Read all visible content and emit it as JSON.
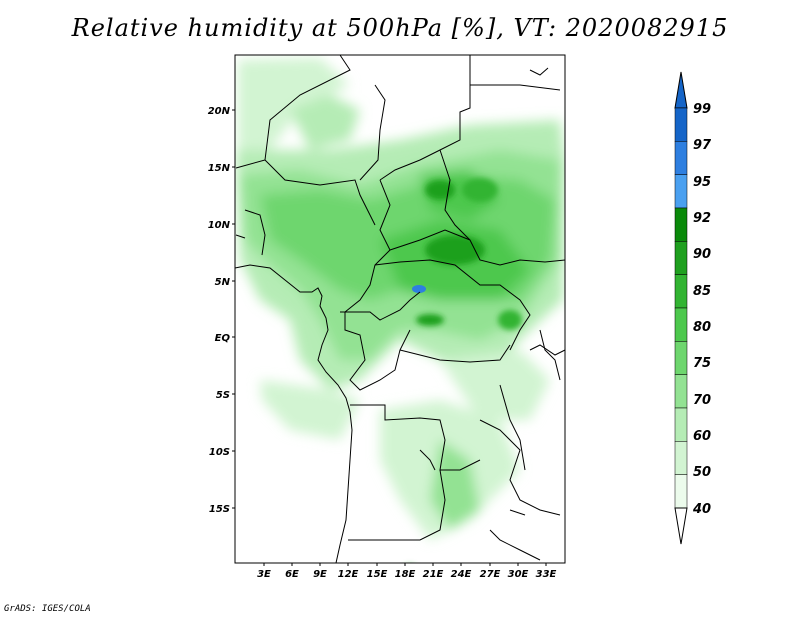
{
  "title": "Relative humidity at 500hPa [%], VT: 2020082915",
  "credit": "GrADS: IGES/COLA",
  "map": {
    "lat_labels": [
      "20N",
      "15N",
      "10N",
      "5N",
      "EQ",
      "5S",
      "10S",
      "15S"
    ],
    "lon_labels": [
      "3E",
      "6E",
      "9E",
      "12E",
      "15E",
      "18E",
      "21E",
      "24E",
      "27E",
      "30E",
      "33E"
    ],
    "lat_range": [
      -20,
      25
    ],
    "lon_range": [
      0,
      35
    ]
  },
  "colorbar": {
    "labels": [
      "99",
      "97",
      "95",
      "92",
      "90",
      "85",
      "80",
      "75",
      "70",
      "60",
      "50",
      "40"
    ],
    "colors": [
      "#1565c8",
      "#2e7fe0",
      "#4aa0f0",
      "#0a8a0a",
      "#1fa01f",
      "#32b432",
      "#4dc84d",
      "#6ed66e",
      "#93e293",
      "#b5ecb5",
      "#d2f4d2",
      "#ecfbec"
    ]
  }
}
